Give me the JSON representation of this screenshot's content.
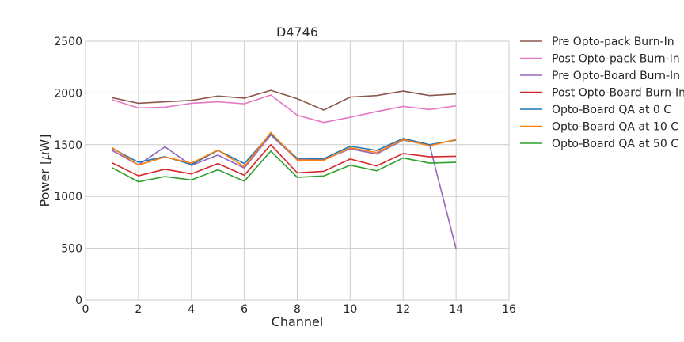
{
  "chart_data": {
    "type": "line",
    "title": "D4746",
    "xlabel": "Channel",
    "ylabel_prefix": "Power [",
    "ylabel_mu": "μ",
    "ylabel_suffix": "W]",
    "xlim": [
      0,
      16
    ],
    "ylim": [
      0,
      2500
    ],
    "xticks": [
      0,
      2,
      4,
      6,
      8,
      10,
      12,
      14,
      16
    ],
    "yticks": [
      0,
      500,
      1000,
      1500,
      2000,
      2500
    ],
    "grid": true,
    "legend_position": "outside-right",
    "x": [
      1,
      2,
      3,
      4,
      5,
      6,
      7,
      8,
      9,
      10,
      11,
      12,
      13,
      14
    ],
    "series": [
      {
        "name": "Pre Opto-pack Burn-In",
        "color": "#8c564b",
        "values": [
          1955,
          1900,
          1915,
          1928,
          1970,
          1950,
          2025,
          1945,
          1835,
          1960,
          1975,
          2018,
          1975,
          1990
        ]
      },
      {
        "name": "Post Opto-pack Burn-In",
        "color": "#e377c2",
        "values": [
          1935,
          1855,
          1862,
          1900,
          1915,
          1895,
          1980,
          1785,
          1715,
          1765,
          1820,
          1870,
          1840,
          1875
        ]
      },
      {
        "name": "Pre Opto-Board Burn-In",
        "color": "#9467bd",
        "values": [
          1445,
          1305,
          1480,
          1300,
          1400,
          1275,
          1595,
          1355,
          1355,
          1460,
          1410,
          1545,
          1495,
          495
        ]
      },
      {
        "name": "Post Opto-Board Burn-In",
        "color": "#d62728",
        "values": [
          1325,
          1200,
          1263,
          1218,
          1318,
          1205,
          1500,
          1228,
          1243,
          1362,
          1295,
          1415,
          1383,
          1388
        ]
      },
      {
        "name": "Opto-Board QA at 0 C",
        "color": "#1f77b4",
        "values": [
          1465,
          1330,
          1385,
          1308,
          1445,
          1318,
          1605,
          1368,
          1365,
          1485,
          1445,
          1560,
          1500,
          1545
        ]
      },
      {
        "name": "Opto-Board QA at 10 C",
        "color": "#ff7f0e",
        "values": [
          1472,
          1303,
          1382,
          1322,
          1448,
          1288,
          1618,
          1352,
          1350,
          1470,
          1425,
          1550,
          1490,
          1550
        ]
      },
      {
        "name": "Opto-Board QA at 50 C",
        "color": "#2ca02c",
        "values": [
          1278,
          1142,
          1192,
          1160,
          1258,
          1148,
          1438,
          1185,
          1198,
          1302,
          1248,
          1372,
          1322,
          1330
        ]
      }
    ]
  }
}
